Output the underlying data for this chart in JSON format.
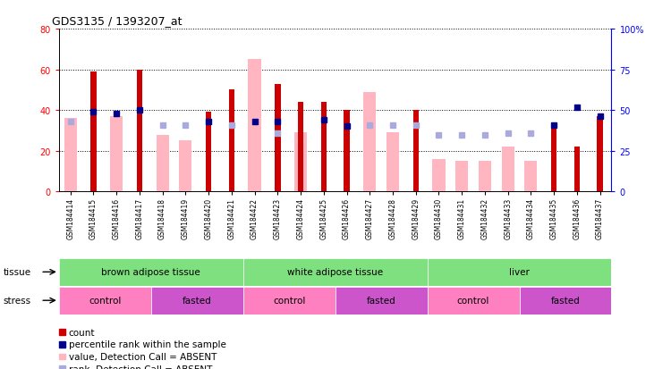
{
  "title": "GDS3135 / 1393207_at",
  "samples": [
    "GSM184414",
    "GSM184415",
    "GSM184416",
    "GSM184417",
    "GSM184418",
    "GSM184419",
    "GSM184420",
    "GSM184421",
    "GSM184422",
    "GSM184423",
    "GSM184424",
    "GSM184425",
    "GSM184426",
    "GSM184427",
    "GSM184428",
    "GSM184429",
    "GSM184430",
    "GSM184431",
    "GSM184432",
    "GSM184433",
    "GSM184434",
    "GSM184435",
    "GSM184436",
    "GSM184437"
  ],
  "red_bars": [
    null,
    59,
    null,
    60,
    null,
    null,
    39,
    50,
    null,
    53,
    44,
    44,
    40,
    null,
    null,
    40,
    null,
    null,
    null,
    null,
    null,
    34,
    22,
    37
  ],
  "pink_bars": [
    36,
    null,
    37,
    null,
    28,
    25,
    null,
    null,
    65,
    null,
    29,
    null,
    null,
    49,
    29,
    null,
    16,
    15,
    15,
    22,
    15,
    null,
    null,
    null
  ],
  "blue_squares": [
    null,
    49,
    48,
    50,
    null,
    null,
    43,
    null,
    43,
    43,
    null,
    44,
    40,
    null,
    null,
    null,
    null,
    null,
    null,
    null,
    null,
    41,
    52,
    46
  ],
  "lightblue_squares": [
    43,
    null,
    null,
    null,
    41,
    41,
    null,
    41,
    null,
    36,
    null,
    null,
    null,
    41,
    41,
    41,
    35,
    35,
    35,
    36,
    36,
    null,
    null,
    null
  ],
  "ylim_left": [
    0,
    80
  ],
  "ylim_right": [
    0,
    100
  ],
  "yticks_left": [
    0,
    20,
    40,
    60,
    80
  ],
  "yticks_right": [
    0,
    25,
    50,
    75,
    100
  ],
  "red_color": "#CC0000",
  "pink_color": "#FFB6C1",
  "blue_color": "#00008B",
  "lightblue_color": "#AAAADD",
  "tissue_color": "#7EE07E",
  "control_color": "#FF80C0",
  "fasted_color": "#CC55CC"
}
